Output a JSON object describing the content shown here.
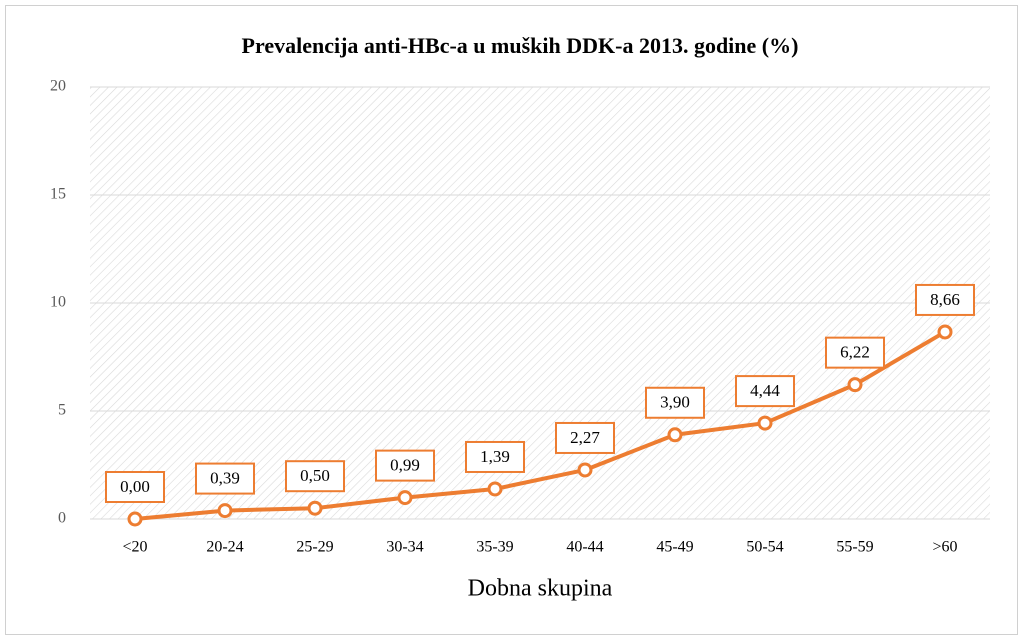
{
  "chart_data": {
    "type": "line",
    "title": "Prevalencija anti-HBc-a u muških  DDK-a 2013. godine (%)",
    "x_label": "Dobna skupina",
    "categories": [
      "<20",
      "20-24",
      "25-29",
      "30-34",
      "35-39",
      "40-44",
      "45-49",
      "50-54",
      "55-59",
      ">60"
    ],
    "values": [
      0.0,
      0.39,
      0.5,
      0.99,
      1.39,
      2.27,
      3.9,
      4.44,
      6.22,
      8.66
    ],
    "value_labels": [
      "0,00",
      "0,39",
      "0,50",
      "0,99",
      "1,39",
      "2,27",
      "3,90",
      "4,44",
      "6,22",
      "8,66"
    ],
    "color": "#ed7d31",
    "ylim": [
      0,
      20
    ],
    "yticks": [
      0,
      5,
      10,
      15,
      20
    ],
    "grid": true
  }
}
